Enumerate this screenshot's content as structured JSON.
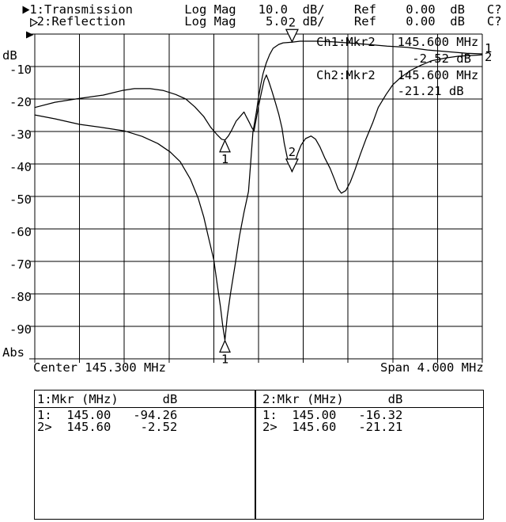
{
  "screen": {
    "bg": "#ffffff",
    "fg": "#000000"
  },
  "header": {
    "rows": [
      {
        "indicator": "filled-right-triangle",
        "channel": "1",
        "text": " 1:Transmission       Log Mag   10.0  dB/    Ref    0.00  dB   C?"
      },
      {
        "indicator": "hollow-right-triangle",
        "channel": "2",
        "text": "  2:Reflection        Log Mag    5.0  dB/    Ref    0.00  dB   C?"
      }
    ]
  },
  "axis": {
    "unit_label": "dB",
    "bottom_label": "Abs",
    "ticks": [
      "-10",
      "-20",
      "-30",
      "-40",
      "-50",
      "-60",
      "-70",
      "-80",
      "-90"
    ],
    "center_label": "Center 145.300 MHz",
    "span_label": "Span 4.000 MHz"
  },
  "annotations": {
    "ch1": {
      "label": "Ch1:Mkr2",
      "freq": "145.600 MHz",
      "value": "-2.52 dB"
    },
    "ch2": {
      "label": "Ch2:Mkr2",
      "freq": "145.600 MHz",
      "value": "-21.21 dB"
    }
  },
  "marker_table": {
    "left": {
      "header": "1:Mkr (MHz)      dB",
      "rows": "1:  145.00   -94.26\n2>  145.60    -2.52"
    },
    "right": {
      "header": "2:Mkr (MHz)      dB",
      "rows": "1:  145.00   -16.32\n2>  145.60   -21.21"
    }
  },
  "chart_data": {
    "type": "line",
    "title": "",
    "xlabel": "MHz",
    "ylabel": "dB",
    "grid": true,
    "x_axis": {
      "center_mhz": 145.3,
      "span_mhz": 4.0,
      "min": 143.3,
      "max": 147.3,
      "divisions": 10
    },
    "y_axis": {
      "ref_db": 0.0,
      "divisions": 10,
      "tick_labels": [
        "-10",
        "-20",
        "-30",
        "-40",
        "-50",
        "-60",
        "-70",
        "-80",
        "-90"
      ]
    },
    "series": [
      {
        "name": "transmission",
        "channel": 1,
        "format": "Log Mag",
        "db_per_div": 10.0,
        "ref_db": 0.0,
        "end_label": "1",
        "points": [
          [
            143.3,
            -24.9
          ],
          [
            143.48,
            -26.1
          ],
          [
            143.7,
            -27.8
          ],
          [
            143.91,
            -28.8
          ],
          [
            144.1,
            -29.8
          ],
          [
            144.26,
            -31.5
          ],
          [
            144.4,
            -33.7
          ],
          [
            144.51,
            -36.3
          ],
          [
            144.6,
            -39.3
          ],
          [
            144.69,
            -44.6
          ],
          [
            144.76,
            -50.5
          ],
          [
            144.81,
            -56.3
          ],
          [
            144.85,
            -62.2
          ],
          [
            144.9,
            -69.5
          ],
          [
            144.93,
            -76.8
          ],
          [
            144.96,
            -84.1
          ],
          [
            144.98,
            -89.8
          ],
          [
            145.0,
            -94.26
          ],
          [
            145.02,
            -87.1
          ],
          [
            145.05,
            -79.8
          ],
          [
            145.09,
            -71.2
          ],
          [
            145.13,
            -62.2
          ],
          [
            145.17,
            -54.9
          ],
          [
            145.21,
            -48.5
          ],
          [
            145.23,
            -39.5
          ],
          [
            145.25,
            -30.2
          ],
          [
            145.28,
            -24.1
          ],
          [
            145.3,
            -19.5
          ],
          [
            145.32,
            -15.6
          ],
          [
            145.34,
            -12.2
          ],
          [
            145.37,
            -8.8
          ],
          [
            145.4,
            -6.3
          ],
          [
            145.43,
            -4.4
          ],
          [
            145.48,
            -3.2
          ],
          [
            145.52,
            -2.7
          ],
          [
            145.6,
            -2.52
          ],
          [
            145.67,
            -2.2
          ],
          [
            145.82,
            -2.2
          ],
          [
            145.96,
            -2.4
          ],
          [
            146.1,
            -2.7
          ],
          [
            146.28,
            -3.2
          ],
          [
            146.45,
            -3.7
          ],
          [
            146.63,
            -4.1
          ],
          [
            146.81,
            -4.9
          ],
          [
            146.98,
            -5.4
          ],
          [
            147.16,
            -5.9
          ],
          [
            147.3,
            -6.1
          ]
        ]
      },
      {
        "name": "reflection",
        "channel": 2,
        "format": "Log Mag",
        "db_per_div": 5.0,
        "ref_db": 0.0,
        "end_label": "2",
        "points": [
          [
            143.3,
            -11.3
          ],
          [
            143.48,
            -10.5
          ],
          [
            143.7,
            -9.9
          ],
          [
            143.91,
            -9.4
          ],
          [
            144.08,
            -8.7
          ],
          [
            144.19,
            -8.4
          ],
          [
            144.33,
            -8.4
          ],
          [
            144.45,
            -8.7
          ],
          [
            144.56,
            -9.3
          ],
          [
            144.65,
            -10.0
          ],
          [
            144.73,
            -11.2
          ],
          [
            144.81,
            -12.7
          ],
          [
            144.87,
            -14.3
          ],
          [
            144.93,
            -15.5
          ],
          [
            144.97,
            -16.2
          ],
          [
            145.0,
            -16.32
          ],
          [
            145.03,
            -15.7
          ],
          [
            145.06,
            -14.8
          ],
          [
            145.1,
            -13.4
          ],
          [
            145.14,
            -12.6
          ],
          [
            145.17,
            -12.0
          ],
          [
            145.19,
            -12.7
          ],
          [
            145.22,
            -13.7
          ],
          [
            145.24,
            -14.4
          ],
          [
            145.26,
            -14.9
          ],
          [
            145.28,
            -13.0
          ],
          [
            145.3,
            -11.1
          ],
          [
            145.33,
            -8.7
          ],
          [
            145.35,
            -7.1
          ],
          [
            145.37,
            -6.3
          ],
          [
            145.39,
            -7.2
          ],
          [
            145.42,
            -8.8
          ],
          [
            145.45,
            -10.5
          ],
          [
            145.48,
            -12.3
          ],
          [
            145.51,
            -14.5
          ],
          [
            145.53,
            -16.8
          ],
          [
            145.56,
            -19.3
          ],
          [
            145.6,
            -21.21
          ],
          [
            145.62,
            -20.0
          ],
          [
            145.65,
            -18.4
          ],
          [
            145.68,
            -17.1
          ],
          [
            145.72,
            -16.1
          ],
          [
            145.77,
            -15.7
          ],
          [
            145.81,
            -16.2
          ],
          [
            145.85,
            -17.4
          ],
          [
            145.89,
            -19.0
          ],
          [
            145.94,
            -20.7
          ],
          [
            145.98,
            -22.4
          ],
          [
            146.01,
            -23.8
          ],
          [
            146.04,
            -24.5
          ],
          [
            146.08,
            -24.1
          ],
          [
            146.12,
            -22.8
          ],
          [
            146.16,
            -21.0
          ],
          [
            146.21,
            -18.5
          ],
          [
            146.26,
            -16.2
          ],
          [
            146.32,
            -13.7
          ],
          [
            146.37,
            -11.3
          ],
          [
            146.44,
            -9.3
          ],
          [
            146.5,
            -7.8
          ],
          [
            146.57,
            -6.7
          ],
          [
            146.66,
            -5.6
          ],
          [
            146.75,
            -4.8
          ],
          [
            146.85,
            -4.1
          ],
          [
            146.97,
            -3.7
          ],
          [
            147.09,
            -3.4
          ],
          [
            147.19,
            -3.3
          ],
          [
            147.3,
            -3.2
          ]
        ]
      }
    ],
    "markers": [
      {
        "channel": 1,
        "marker": "1",
        "freq_mhz": 145.0,
        "db": -94.26,
        "active": false
      },
      {
        "channel": 1,
        "marker": "2",
        "freq_mhz": 145.6,
        "db": -2.52,
        "active": true
      },
      {
        "channel": 2,
        "marker": "1",
        "freq_mhz": 145.0,
        "db": -16.32,
        "active": false
      },
      {
        "channel": 2,
        "marker": "2",
        "freq_mhz": 145.6,
        "db": -21.21,
        "active": true
      }
    ]
  }
}
